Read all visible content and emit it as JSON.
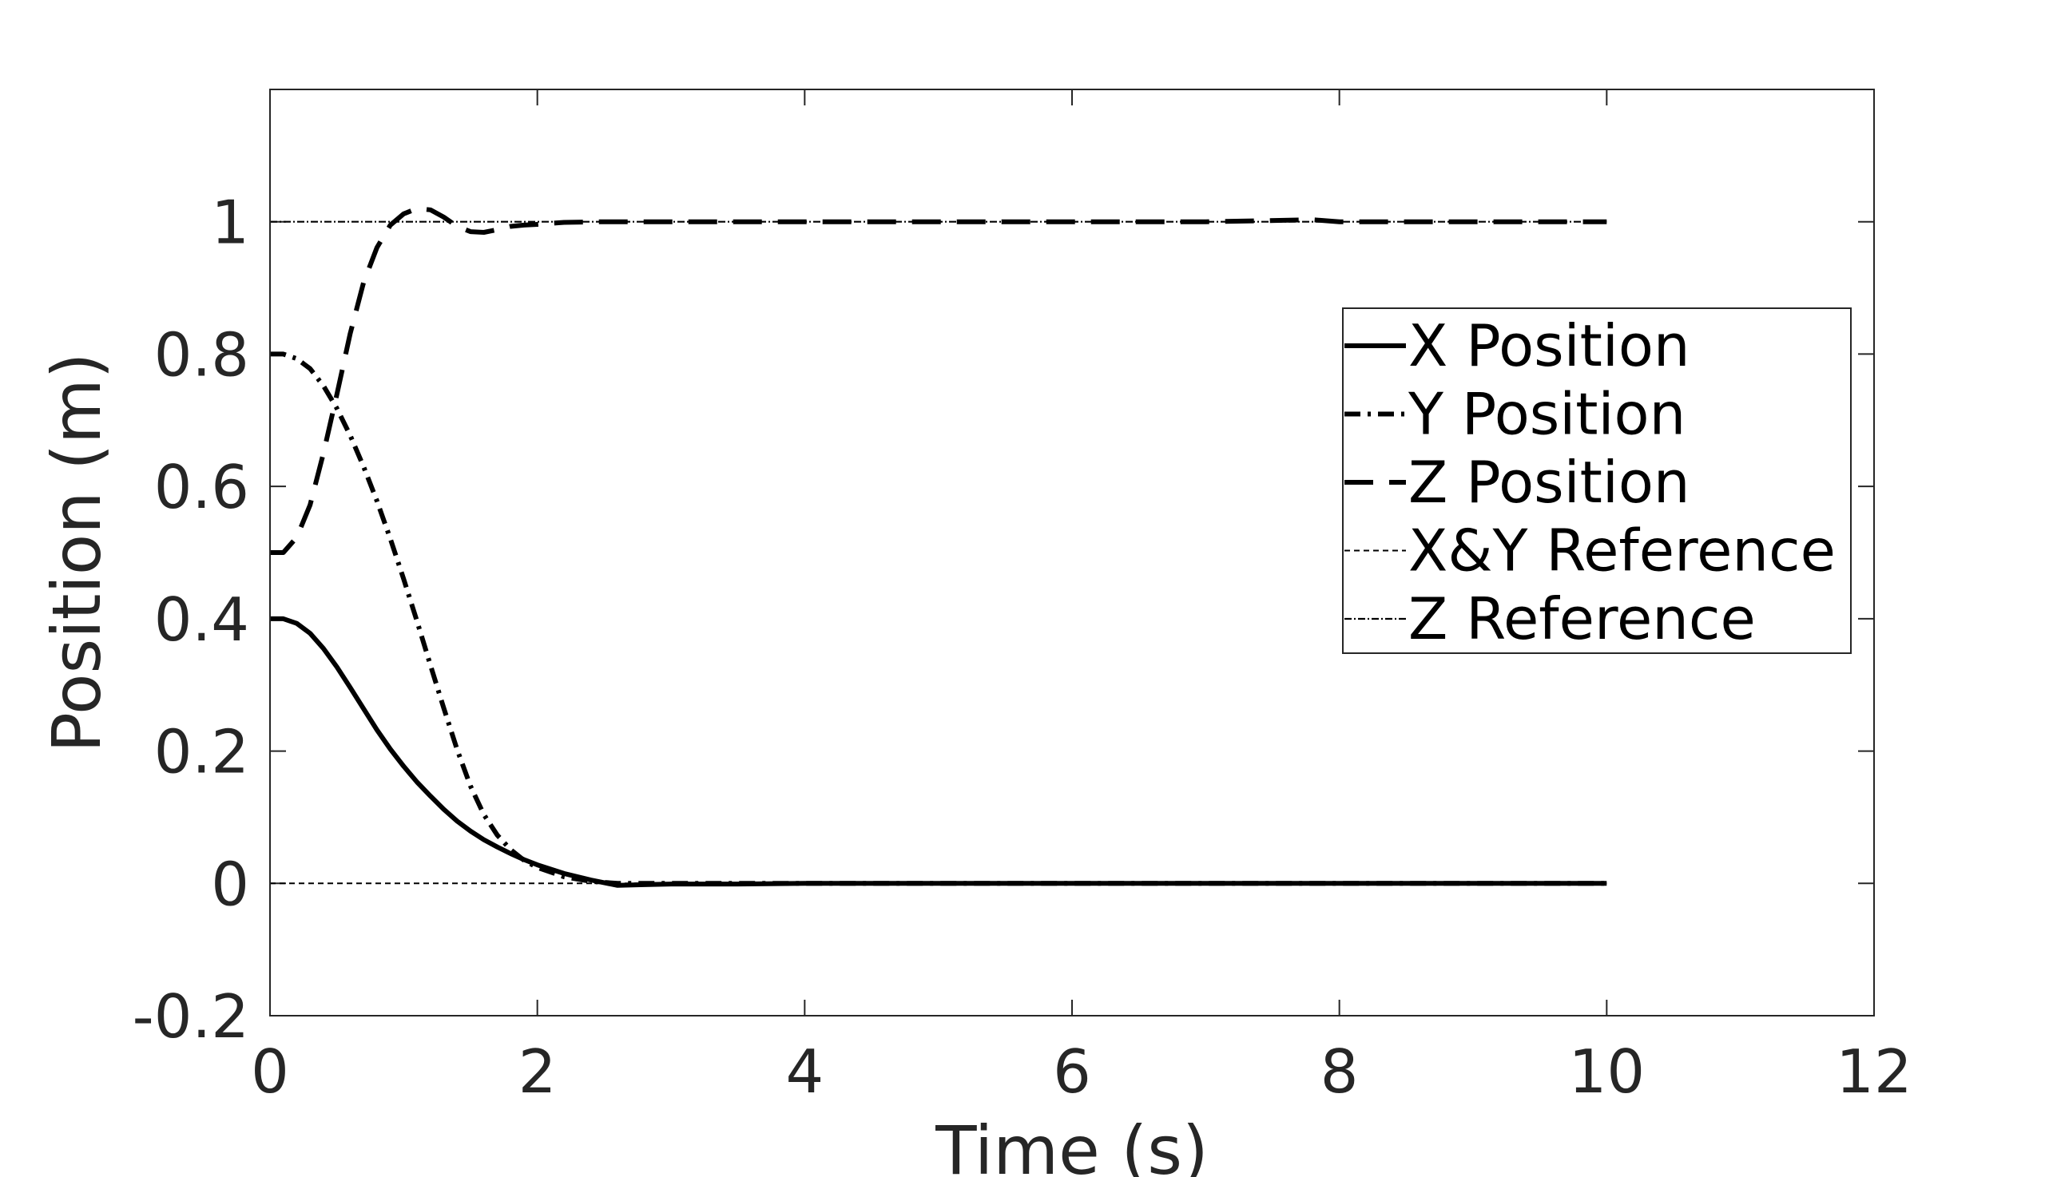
{
  "chart_data": {
    "type": "line",
    "title": "",
    "xlabel": "Time (s)",
    "ylabel": "Position (m)",
    "xlim": [
      0,
      12
    ],
    "ylim": [
      -0.2,
      1.2
    ],
    "xticks": [
      0,
      2,
      4,
      6,
      8,
      10,
      12
    ],
    "xtick_labels": [
      "0",
      "2",
      "4",
      "6",
      "8",
      "10",
      "12"
    ],
    "yticks": [
      -0.2,
      0,
      0.2,
      0.4,
      0.6,
      0.8,
      1
    ],
    "ytick_labels": [
      "-0.2",
      "0",
      "0.2",
      "0.4",
      "0.6",
      "0.8",
      "1"
    ],
    "grid": false,
    "legend_position": "right",
    "series": [
      {
        "name": "X Position",
        "style": "solid",
        "color": "#000000",
        "x": [
          0,
          0.1,
          0.2,
          0.3,
          0.4,
          0.5,
          0.6,
          0.7,
          0.8,
          0.9,
          1.0,
          1.1,
          1.2,
          1.3,
          1.4,
          1.5,
          1.6,
          1.7,
          1.8,
          1.9,
          2.0,
          2.2,
          2.4,
          2.6,
          2.8,
          3.0,
          3.5,
          4.0,
          5.0,
          6.0,
          7.0,
          8.0,
          9.0,
          10.0
        ],
        "y": [
          0.4,
          0.4,
          0.393,
          0.378,
          0.355,
          0.327,
          0.296,
          0.264,
          0.232,
          0.203,
          0.177,
          0.153,
          0.132,
          0.112,
          0.094,
          0.079,
          0.066,
          0.055,
          0.045,
          0.036,
          0.028,
          0.015,
          0.005,
          -0.003,
          -0.002,
          -0.001,
          -0.001,
          0.0,
          0.0,
          0.0,
          0.0,
          0.0,
          0.0,
          0.0
        ]
      },
      {
        "name": "Y Position",
        "style": "dashdot",
        "color": "#000000",
        "x": [
          0,
          0.1,
          0.2,
          0.3,
          0.4,
          0.5,
          0.6,
          0.7,
          0.8,
          0.9,
          1.0,
          1.1,
          1.2,
          1.3,
          1.4,
          1.5,
          1.6,
          1.7,
          1.8,
          1.9,
          2.0,
          2.2,
          2.4,
          2.6,
          2.8,
          3.0,
          4.0,
          5.0,
          6.0,
          7.0,
          8.0,
          9.0,
          10.0
        ],
        "y": [
          0.8,
          0.8,
          0.793,
          0.778,
          0.752,
          0.718,
          0.677,
          0.63,
          0.578,
          0.521,
          0.46,
          0.396,
          0.33,
          0.265,
          0.202,
          0.147,
          0.104,
          0.073,
          0.051,
          0.035,
          0.024,
          0.01,
          0.003,
          0.0,
          0.0,
          0.0,
          0.0,
          0.0,
          0.0,
          0.0,
          0.0,
          0.0,
          0.0
        ]
      },
      {
        "name": "Z Position",
        "style": "dashed",
        "color": "#000000",
        "x": [
          0,
          0.1,
          0.2,
          0.3,
          0.4,
          0.5,
          0.6,
          0.7,
          0.8,
          0.9,
          1.0,
          1.1,
          1.2,
          1.3,
          1.4,
          1.5,
          1.6,
          1.7,
          1.8,
          1.9,
          2.0,
          2.2,
          2.5,
          3.0,
          4.0,
          5.0,
          6.0,
          7.0,
          7.8,
          8.0,
          9.0,
          10.0
        ],
        "y": [
          0.5,
          0.5,
          0.523,
          0.572,
          0.65,
          0.739,
          0.831,
          0.908,
          0.961,
          0.995,
          1.012,
          1.02,
          1.018,
          1.007,
          0.993,
          0.985,
          0.984,
          0.988,
          0.993,
          0.995,
          0.996,
          0.999,
          1.0,
          1.0,
          1.0,
          1.0,
          1.0,
          1.0,
          1.003,
          1.0,
          1.0,
          1.0
        ]
      },
      {
        "name": "X&Y Reference",
        "style": "dotted",
        "color": "#000000",
        "x": [
          0,
          10
        ],
        "y": [
          0,
          0
        ]
      },
      {
        "name": "Z Reference",
        "style": "dotdash-fine",
        "color": "#000000",
        "x": [
          0,
          10
        ],
        "y": [
          1,
          1
        ]
      }
    ]
  }
}
